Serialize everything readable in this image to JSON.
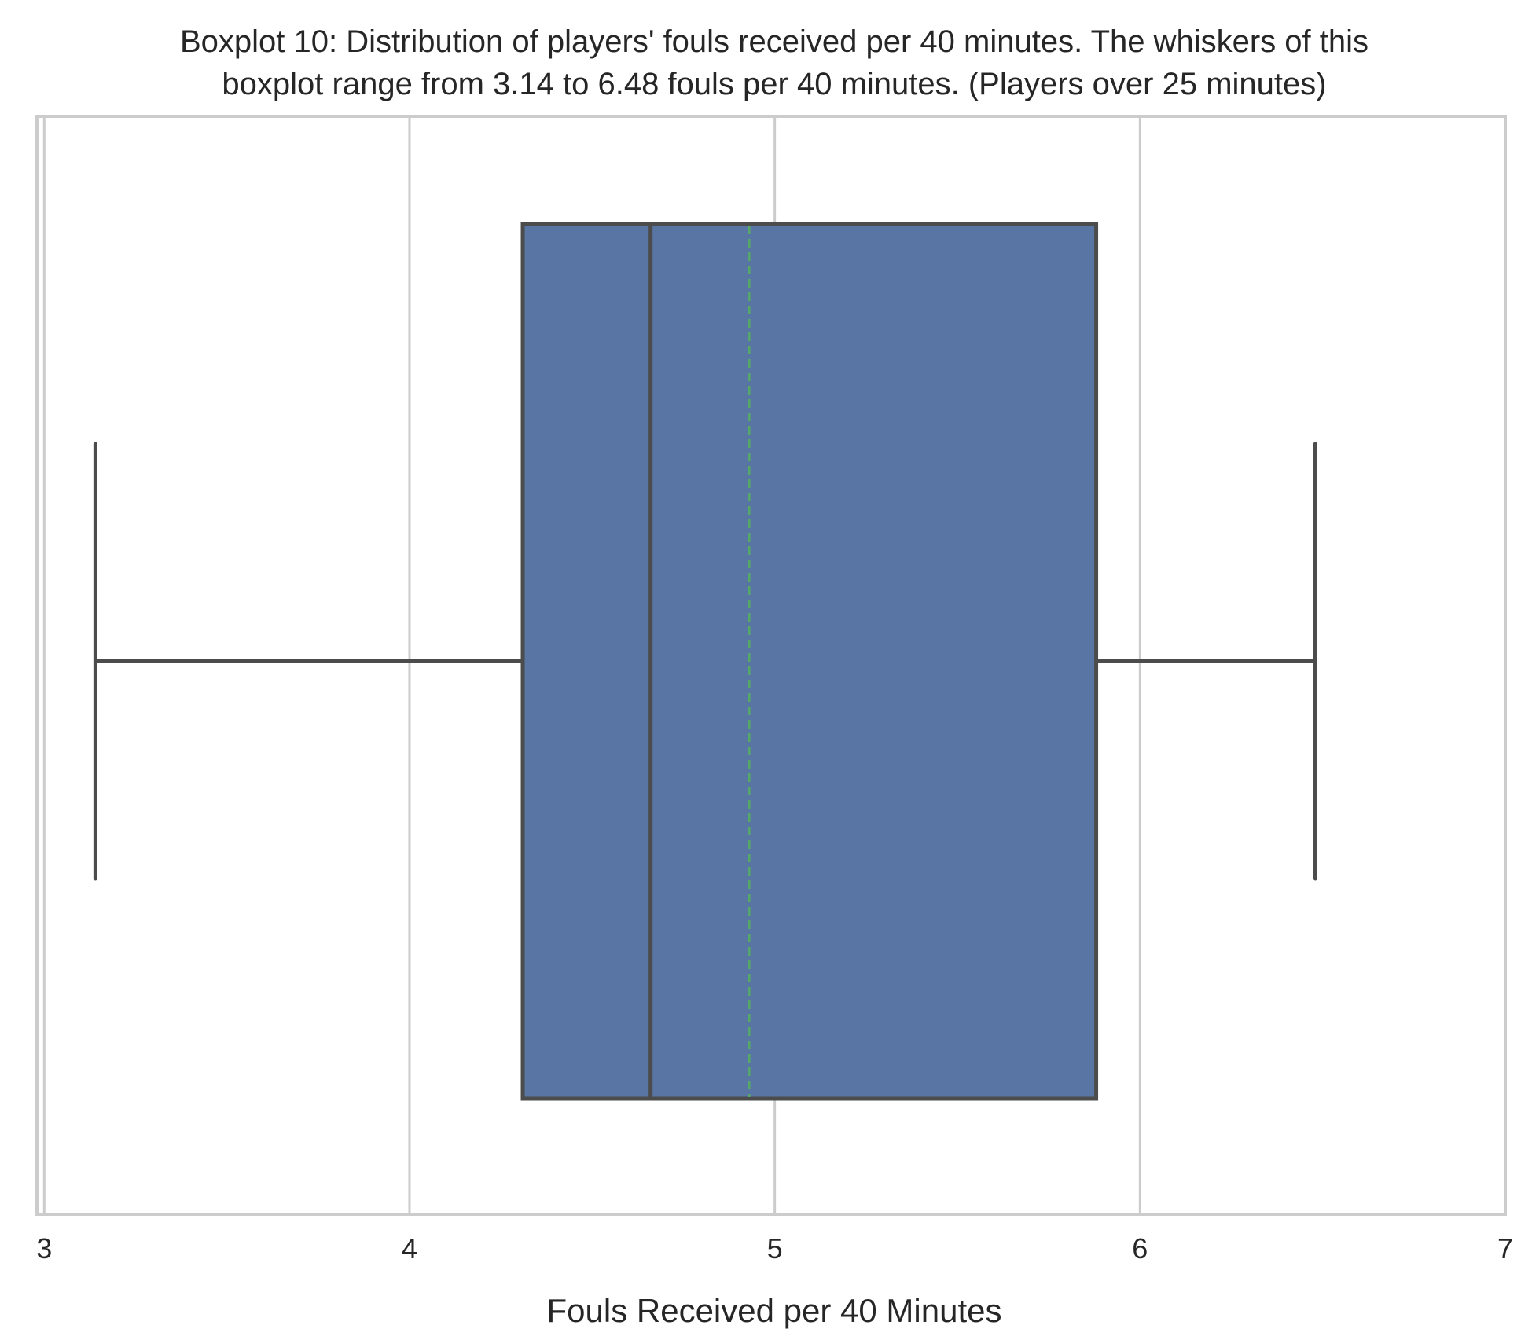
{
  "chart_data": {
    "type": "boxplot",
    "orientation": "horizontal",
    "title": [
      "Boxplot 10: Distribution of players' fouls received per 40 minutes. The whiskers of this",
      "boxplot range from 3.14 to 6.48 fouls per 40 minutes. (Players over 25 minutes)"
    ],
    "xlabel": "Fouls Received per 40 Minutes",
    "ylabel": "",
    "xlim": [
      2.98,
      7.0
    ],
    "xticks": [
      3,
      4,
      5,
      6,
      7
    ],
    "xtick_labels": [
      "3",
      "4",
      "5",
      "6",
      "7"
    ],
    "grid": {
      "x": true,
      "y": false
    },
    "box": {
      "whisker_low": 3.14,
      "q1": 4.31,
      "median": 4.66,
      "mean": 4.93,
      "q3": 5.88,
      "whisker_high": 6.48
    },
    "colors": {
      "box_fill": "#5875a4",
      "line": "#4c4c4c",
      "mean_line": "#55a868",
      "grid": "#cccccc",
      "frame": "#cccccc"
    }
  }
}
